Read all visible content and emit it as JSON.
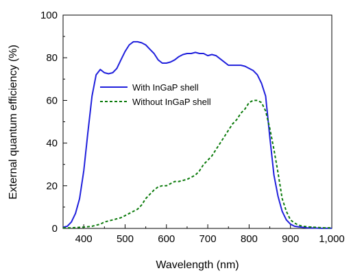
{
  "chart_data": {
    "type": "line",
    "xlabel": "Wavelength (nm)",
    "ylabel": "External quantum efficiency (%)",
    "xlim": [
      350,
      1000
    ],
    "ylim": [
      0,
      100
    ],
    "xticks": [
      400,
      500,
      600,
      700,
      800,
      900,
      1000
    ],
    "xtick_labels": [
      "400",
      "500",
      "600",
      "700",
      "800",
      "900",
      "1,000"
    ],
    "yticks": [
      0,
      20,
      40,
      60,
      80,
      100
    ],
    "ytick_labels": [
      "0",
      "20",
      "40",
      "60",
      "80",
      "100"
    ],
    "grid": false,
    "legend_position": "center-left",
    "series": [
      {
        "name": "With InGaP shell",
        "color": "#1f1fdc",
        "style": "solid",
        "x": [
          350,
          360,
          370,
          380,
          390,
          400,
          410,
          420,
          430,
          440,
          450,
          460,
          470,
          480,
          490,
          500,
          510,
          520,
          530,
          540,
          550,
          560,
          570,
          580,
          590,
          600,
          610,
          620,
          630,
          640,
          650,
          660,
          670,
          680,
          690,
          700,
          710,
          720,
          730,
          740,
          750,
          760,
          770,
          780,
          790,
          800,
          810,
          820,
          830,
          840,
          850,
          860,
          870,
          880,
          890,
          900,
          910,
          920,
          930,
          940,
          950,
          960,
          970,
          980,
          990,
          1000
        ],
        "y": [
          0.5,
          1,
          3,
          7,
          14,
          27,
          45,
          62,
          72,
          74.5,
          73,
          72.5,
          73,
          75,
          79,
          83,
          86,
          87.5,
          87.5,
          87,
          86,
          84,
          82,
          79,
          77.5,
          77.5,
          78,
          79,
          80.5,
          81.5,
          82,
          82,
          82.5,
          82,
          82,
          81,
          81.5,
          81,
          79.5,
          78,
          76.5,
          76.5,
          76.5,
          76.5,
          76,
          75,
          74,
          72,
          68,
          62,
          43,
          25,
          15,
          8,
          4,
          2,
          1,
          0.7,
          0.5,
          0.3,
          0.2,
          0.2,
          0.1,
          0.1,
          0.1,
          0.1
        ]
      },
      {
        "name": "Without InGaP shell",
        "color": "#0a7a0a",
        "style": "dashed",
        "x": [
          350,
          360,
          370,
          380,
          390,
          400,
          410,
          420,
          430,
          440,
          450,
          460,
          470,
          480,
          490,
          500,
          510,
          520,
          530,
          540,
          550,
          560,
          570,
          580,
          590,
          600,
          610,
          620,
          630,
          640,
          650,
          660,
          670,
          680,
          690,
          700,
          710,
          720,
          730,
          740,
          750,
          760,
          770,
          780,
          790,
          800,
          810,
          820,
          830,
          840,
          850,
          860,
          870,
          880,
          890,
          900,
          910,
          920,
          930,
          940,
          950,
          960,
          970,
          980,
          990,
          1000
        ],
        "y": [
          0.3,
          0.3,
          0.3,
          0.4,
          0.5,
          0.6,
          0.8,
          1,
          1.5,
          2,
          3,
          3.5,
          4,
          4.5,
          5,
          6,
          7,
          8,
          9,
          11,
          14,
          16,
          18,
          19.5,
          20,
          20,
          21,
          22,
          22,
          22.5,
          23,
          24,
          25,
          27,
          30,
          32,
          34,
          37,
          40,
          43,
          46,
          49,
          51,
          54,
          56,
          59,
          60,
          60,
          59,
          55,
          47,
          37,
          26,
          14,
          8,
          4,
          2.5,
          1.5,
          1,
          0.8,
          0.6,
          0.5,
          0.4,
          0.3,
          0.3,
          0.3
        ]
      }
    ]
  }
}
